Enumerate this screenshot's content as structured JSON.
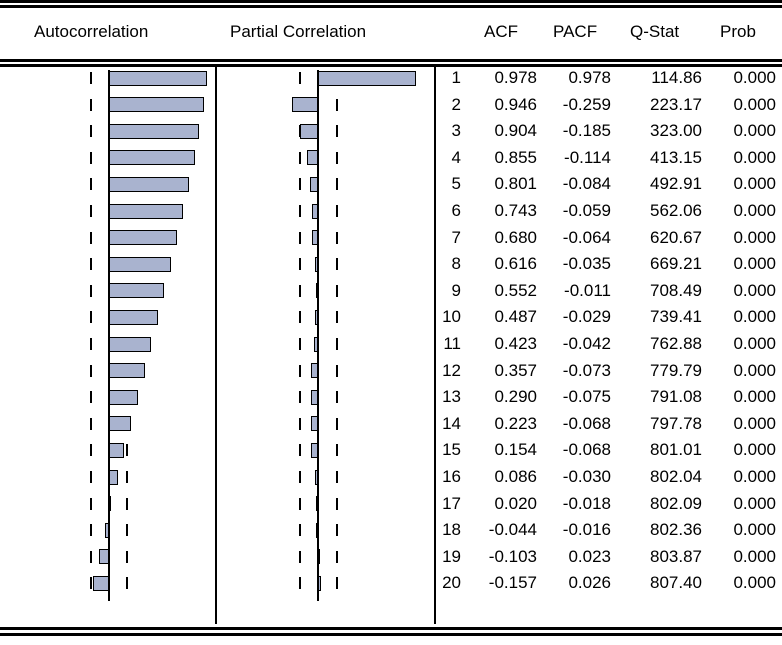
{
  "headers": {
    "autocorrelation": "Autocorrelation",
    "partial_correlation": "Partial Correlation",
    "acf": "ACF",
    "pacf": "PACF",
    "qstat": "Q-Stat",
    "prob": "Prob"
  },
  "rows": [
    {
      "lag": "1",
      "acf": "0.978",
      "pacf": "0.978",
      "q": "114.86",
      "prob": "0.000"
    },
    {
      "lag": "2",
      "acf": "0.946",
      "pacf": "-0.259",
      "q": "223.17",
      "prob": "0.000"
    },
    {
      "lag": "3",
      "acf": "0.904",
      "pacf": "-0.185",
      "q": "323.00",
      "prob": "0.000"
    },
    {
      "lag": "4",
      "acf": "0.855",
      "pacf": "-0.114",
      "q": "413.15",
      "prob": "0.000"
    },
    {
      "lag": "5",
      "acf": "0.801",
      "pacf": "-0.084",
      "q": "492.91",
      "prob": "0.000"
    },
    {
      "lag": "6",
      "acf": "0.743",
      "pacf": "-0.059",
      "q": "562.06",
      "prob": "0.000"
    },
    {
      "lag": "7",
      "acf": "0.680",
      "pacf": "-0.064",
      "q": "620.67",
      "prob": "0.000"
    },
    {
      "lag": "8",
      "acf": "0.616",
      "pacf": "-0.035",
      "q": "669.21",
      "prob": "0.000"
    },
    {
      "lag": "9",
      "acf": "0.552",
      "pacf": "-0.011",
      "q": "708.49",
      "prob": "0.000"
    },
    {
      "lag": "10",
      "acf": "0.487",
      "pacf": "-0.029",
      "q": "739.41",
      "prob": "0.000"
    },
    {
      "lag": "11",
      "acf": "0.423",
      "pacf": "-0.042",
      "q": "762.88",
      "prob": "0.000"
    },
    {
      "lag": "12",
      "acf": "0.357",
      "pacf": "-0.073",
      "q": "779.79",
      "prob": "0.000"
    },
    {
      "lag": "13",
      "acf": "0.290",
      "pacf": "-0.075",
      "q": "791.08",
      "prob": "0.000"
    },
    {
      "lag": "14",
      "acf": "0.223",
      "pacf": "-0.068",
      "q": "797.78",
      "prob": "0.000"
    },
    {
      "lag": "15",
      "acf": "0.154",
      "pacf": "-0.068",
      "q": "801.01",
      "prob": "0.000"
    },
    {
      "lag": "16",
      "acf": "0.086",
      "pacf": "-0.030",
      "q": "802.04",
      "prob": "0.000"
    },
    {
      "lag": "17",
      "acf": "0.020",
      "pacf": "-0.018",
      "q": "802.09",
      "prob": "0.000"
    },
    {
      "lag": "18",
      "acf": "-0.044",
      "pacf": "-0.016",
      "q": "802.36",
      "prob": "0.000"
    },
    {
      "lag": "19",
      "acf": "-0.103",
      "pacf": "0.023",
      "q": "803.87",
      "prob": "0.000"
    },
    {
      "lag": "20",
      "acf": "-0.157",
      "pacf": "0.026",
      "q": "807.40",
      "prob": "0.000"
    }
  ],
  "colors": {
    "bar_fill": "#a9b3cf",
    "line": "#000000",
    "background": "#ffffff"
  }
}
